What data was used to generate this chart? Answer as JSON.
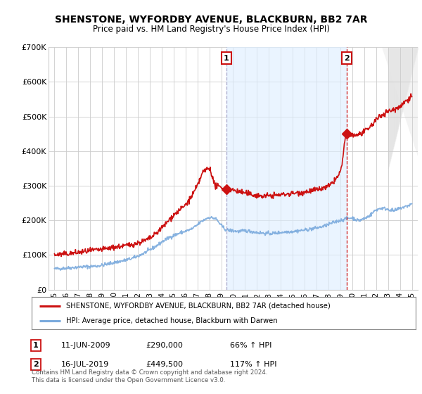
{
  "title": "SHENSTONE, WYFORDBY AVENUE, BLACKBURN, BB2 7AR",
  "subtitle": "Price paid vs. HM Land Registry's House Price Index (HPI)",
  "ylim": [
    0,
    700000
  ],
  "yticks": [
    0,
    100000,
    200000,
    300000,
    400000,
    500000,
    600000,
    700000
  ],
  "ytick_labels": [
    "£0",
    "£100K",
    "£200K",
    "£300K",
    "£400K",
    "£500K",
    "£600K",
    "£700K"
  ],
  "xlim_start": 1994.5,
  "xlim_end": 2025.5,
  "xtick_years": [
    1995,
    1996,
    1997,
    1998,
    1999,
    2000,
    2001,
    2002,
    2003,
    2004,
    2005,
    2006,
    2007,
    2008,
    2009,
    2010,
    2011,
    2012,
    2013,
    2014,
    2015,
    2016,
    2017,
    2018,
    2019,
    2020,
    2021,
    2022,
    2023,
    2024,
    2025
  ],
  "sale1_x": 2009.44,
  "sale1_y": 290000,
  "sale2_x": 2019.54,
  "sale2_y": 449500,
  "hpi_color": "#7aaadd",
  "price_color": "#cc1111",
  "vline1_color": "#aaaacc",
  "vline2_color": "#cc1111",
  "shaded_color": "#ddeeff",
  "legend_line1": "SHENSTONE, WYFORDBY AVENUE, BLACKBURN, BB2 7AR (detached house)",
  "legend_line2": "HPI: Average price, detached house, Blackburn with Darwen",
  "note1_date": "11-JUN-2009",
  "note1_price": "£290,000",
  "note1_hpi": "66% ↑ HPI",
  "note2_date": "16-JUL-2019",
  "note2_price": "£449,500",
  "note2_hpi": "117% ↑ HPI",
  "footer": "Contains HM Land Registry data © Crown copyright and database right 2024.\nThis data is licensed under the Open Government Licence v3.0.",
  "background_color": "#ffffff",
  "grid_color": "#cccccc"
}
